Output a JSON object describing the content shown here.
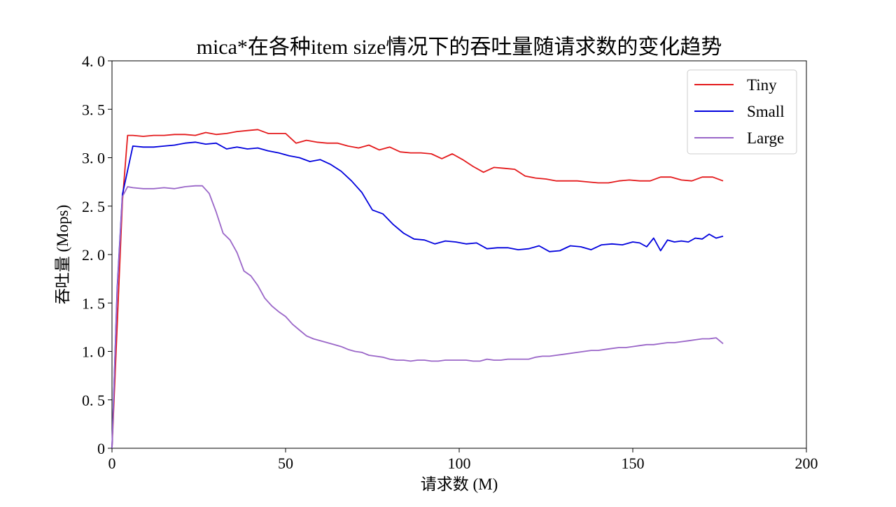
{
  "chart_data": {
    "type": "line",
    "title": "mica*在各种item size情况下的吞吐量随请求数的变化趋势",
    "xlabel": "请求数 (M)",
    "ylabel": "吞吐量 (Mops)",
    "xlim": [
      0,
      200
    ],
    "ylim": [
      0,
      4.0
    ],
    "x_ticks": [
      0,
      50,
      100,
      150,
      200
    ],
    "x_tick_labels": [
      "0",
      "50",
      "100",
      "150",
      "200"
    ],
    "y_ticks": [
      0,
      0.5,
      1.0,
      1.5,
      2.0,
      2.5,
      3.0,
      3.5,
      4.0
    ],
    "y_tick_labels": [
      "0",
      "0. 5",
      "1. 0",
      "1. 5",
      "2. 0",
      "2. 5",
      "3. 0",
      "3. 5",
      "4. 0"
    ],
    "grid": false,
    "legend_position": "top-right",
    "series": [
      {
        "name": "Tiny",
        "color": "#e41a1c",
        "x": [
          0,
          3,
          4.5,
          6,
          9,
          12,
          15,
          18,
          21,
          24,
          27,
          30,
          33,
          36,
          39,
          42,
          45,
          48,
          50,
          53,
          56,
          59,
          62,
          65,
          68,
          71,
          74,
          77,
          80,
          83,
          86,
          89,
          92,
          95,
          98,
          101,
          104,
          107,
          110,
          113,
          116,
          119,
          122,
          125,
          128,
          131,
          134,
          137,
          140,
          143,
          146,
          149,
          152,
          155,
          158,
          161,
          164,
          167,
          170,
          173,
          176
        ],
        "y": [
          0,
          2.55,
          3.23,
          3.23,
          3.22,
          3.23,
          3.23,
          3.24,
          3.24,
          3.23,
          3.26,
          3.24,
          3.25,
          3.27,
          3.28,
          3.29,
          3.25,
          3.25,
          3.25,
          3.15,
          3.18,
          3.16,
          3.15,
          3.15,
          3.12,
          3.1,
          3.13,
          3.08,
          3.11,
          3.06,
          3.05,
          3.05,
          3.04,
          2.99,
          3.04,
          2.98,
          2.91,
          2.85,
          2.9,
          2.89,
          2.88,
          2.81,
          2.79,
          2.78,
          2.76,
          2.76,
          2.76,
          2.75,
          2.74,
          2.74,
          2.76,
          2.77,
          2.76,
          2.76,
          2.8,
          2.8,
          2.77,
          2.76,
          2.8,
          2.8,
          2.76
        ]
      },
      {
        "name": "Small",
        "color": "#0000dd",
        "x": [
          0,
          1.5,
          3,
          6,
          9,
          12,
          15,
          18,
          21,
          24,
          27,
          30,
          33,
          36,
          39,
          42,
          45,
          48,
          51,
          54,
          57,
          60,
          63,
          66,
          69,
          72,
          75,
          78,
          81,
          84,
          87,
          90,
          93,
          96,
          99,
          102,
          105,
          108,
          111,
          114,
          117,
          120,
          123,
          126,
          129,
          132,
          135,
          138,
          141,
          144,
          147,
          150,
          152,
          154,
          156,
          158,
          160,
          162,
          164,
          166,
          168,
          170,
          172,
          174,
          176
        ],
        "y": [
          0,
          1.65,
          2.62,
          3.12,
          3.11,
          3.11,
          3.12,
          3.13,
          3.15,
          3.16,
          3.14,
          3.15,
          3.09,
          3.11,
          3.09,
          3.1,
          3.07,
          3.05,
          3.02,
          3.0,
          2.96,
          2.98,
          2.93,
          2.86,
          2.76,
          2.64,
          2.46,
          2.42,
          2.31,
          2.22,
          2.16,
          2.15,
          2.11,
          2.14,
          2.13,
          2.11,
          2.12,
          2.06,
          2.07,
          2.07,
          2.05,
          2.06,
          2.09,
          2.03,
          2.04,
          2.09,
          2.08,
          2.05,
          2.1,
          2.11,
          2.1,
          2.13,
          2.12,
          2.08,
          2.17,
          2.04,
          2.15,
          2.13,
          2.14,
          2.13,
          2.17,
          2.16,
          2.21,
          2.17,
          2.19
        ]
      },
      {
        "name": "Large",
        "color": "#9a66c8",
        "x": [
          0,
          1.5,
          3,
          4.5,
          6,
          9,
          12,
          15,
          18,
          21,
          24,
          26,
          28,
          30,
          32,
          34,
          36,
          38,
          40,
          42,
          44,
          46,
          48,
          50,
          52,
          54,
          56,
          58,
          60,
          62,
          64,
          66,
          68,
          70,
          72,
          74,
          76,
          78,
          80,
          82,
          84,
          86,
          88,
          90,
          92,
          94,
          96,
          98,
          100,
          102,
          104,
          106,
          108,
          110,
          112,
          114,
          116,
          118,
          120,
          122,
          124,
          126,
          128,
          130,
          132,
          134,
          136,
          138,
          140,
          142,
          144,
          146,
          148,
          150,
          152,
          154,
          156,
          158,
          160,
          162,
          164,
          166,
          168,
          170,
          172,
          174,
          176
        ],
        "y": [
          0,
          1.62,
          2.6,
          2.7,
          2.69,
          2.68,
          2.68,
          2.69,
          2.68,
          2.7,
          2.71,
          2.71,
          2.63,
          2.44,
          2.22,
          2.15,
          2.02,
          1.83,
          1.78,
          1.68,
          1.55,
          1.47,
          1.41,
          1.36,
          1.28,
          1.22,
          1.16,
          1.13,
          1.11,
          1.09,
          1.07,
          1.05,
          1.02,
          1.0,
          0.99,
          0.96,
          0.95,
          0.94,
          0.92,
          0.91,
          0.91,
          0.9,
          0.91,
          0.91,
          0.9,
          0.9,
          0.91,
          0.91,
          0.91,
          0.91,
          0.9,
          0.9,
          0.92,
          0.91,
          0.91,
          0.92,
          0.92,
          0.92,
          0.92,
          0.94,
          0.95,
          0.95,
          0.96,
          0.97,
          0.98,
          0.99,
          1.0,
          1.01,
          1.01,
          1.02,
          1.03,
          1.04,
          1.04,
          1.05,
          1.06,
          1.07,
          1.07,
          1.08,
          1.09,
          1.09,
          1.1,
          1.11,
          1.12,
          1.13,
          1.13,
          1.14,
          1.08
        ]
      }
    ]
  }
}
